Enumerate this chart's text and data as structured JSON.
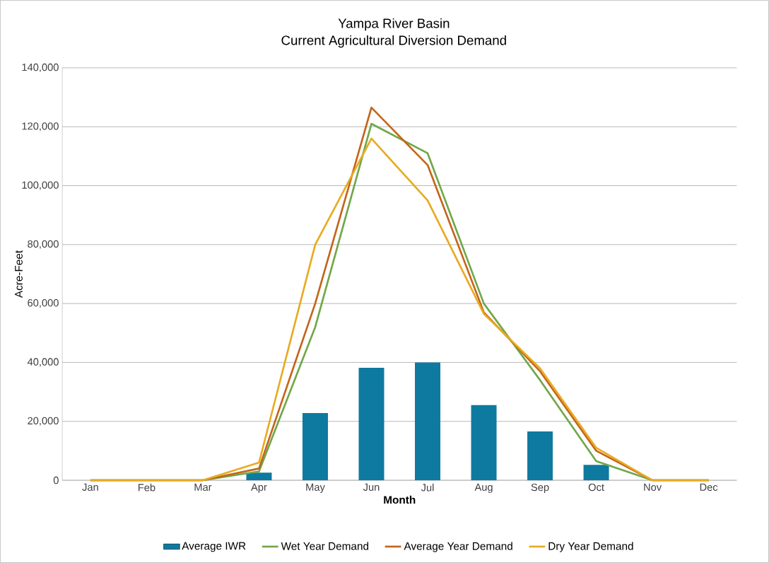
{
  "chart_data": {
    "type": "bar",
    "title": "Yampa River Basin",
    "subtitle": "Current Agricultural Diversion Demand",
    "xlabel": "Month",
    "ylabel": "Acre-Feet",
    "categories": [
      "Jan",
      "Feb",
      "Mar",
      "Apr",
      "May",
      "Jun",
      "Jul",
      "Aug",
      "Sep",
      "Oct",
      "Nov",
      "Dec"
    ],
    "series": [
      {
        "name": "Average IWR",
        "color": "#0e7aa0",
        "values": [
          0,
          0,
          0,
          2600,
          22800,
          38200,
          40000,
          25500,
          16600,
          5200,
          0,
          0
        ]
      },
      {
        "name": "Wet Year Demand",
        "type": "line",
        "color": "#6fa84a",
        "values": [
          0,
          0,
          0,
          3000,
          52000,
          121000,
          111000,
          60000,
          34000,
          6500,
          0,
          0
        ]
      },
      {
        "name": "Average Year Demand",
        "type": "line",
        "color": "#c5651a",
        "values": [
          0,
          0,
          0,
          4000,
          60000,
          126500,
          107000,
          57000,
          37000,
          10000,
          0,
          0
        ]
      },
      {
        "name": "Dry Year Demand",
        "type": "line",
        "color": "#e8ab22",
        "values": [
          0,
          0,
          0,
          6000,
          80000,
          116000,
          95000,
          56500,
          38000,
          11000,
          0,
          0
        ]
      }
    ],
    "ylim": [
      0,
      140000
    ],
    "yticks": [
      {
        "value": 0,
        "label": "0"
      },
      {
        "value": 20000,
        "label": "20,000"
      },
      {
        "value": 40000,
        "label": "40,000"
      },
      {
        "value": 60000,
        "label": "60,000"
      },
      {
        "value": 80000,
        "label": "80,000"
      },
      {
        "value": 100000,
        "label": "100,000"
      },
      {
        "value": 120000,
        "label": "120,000"
      },
      {
        "value": 140000,
        "label": "140,000"
      }
    ],
    "grid": "y",
    "legend": "bottom"
  }
}
